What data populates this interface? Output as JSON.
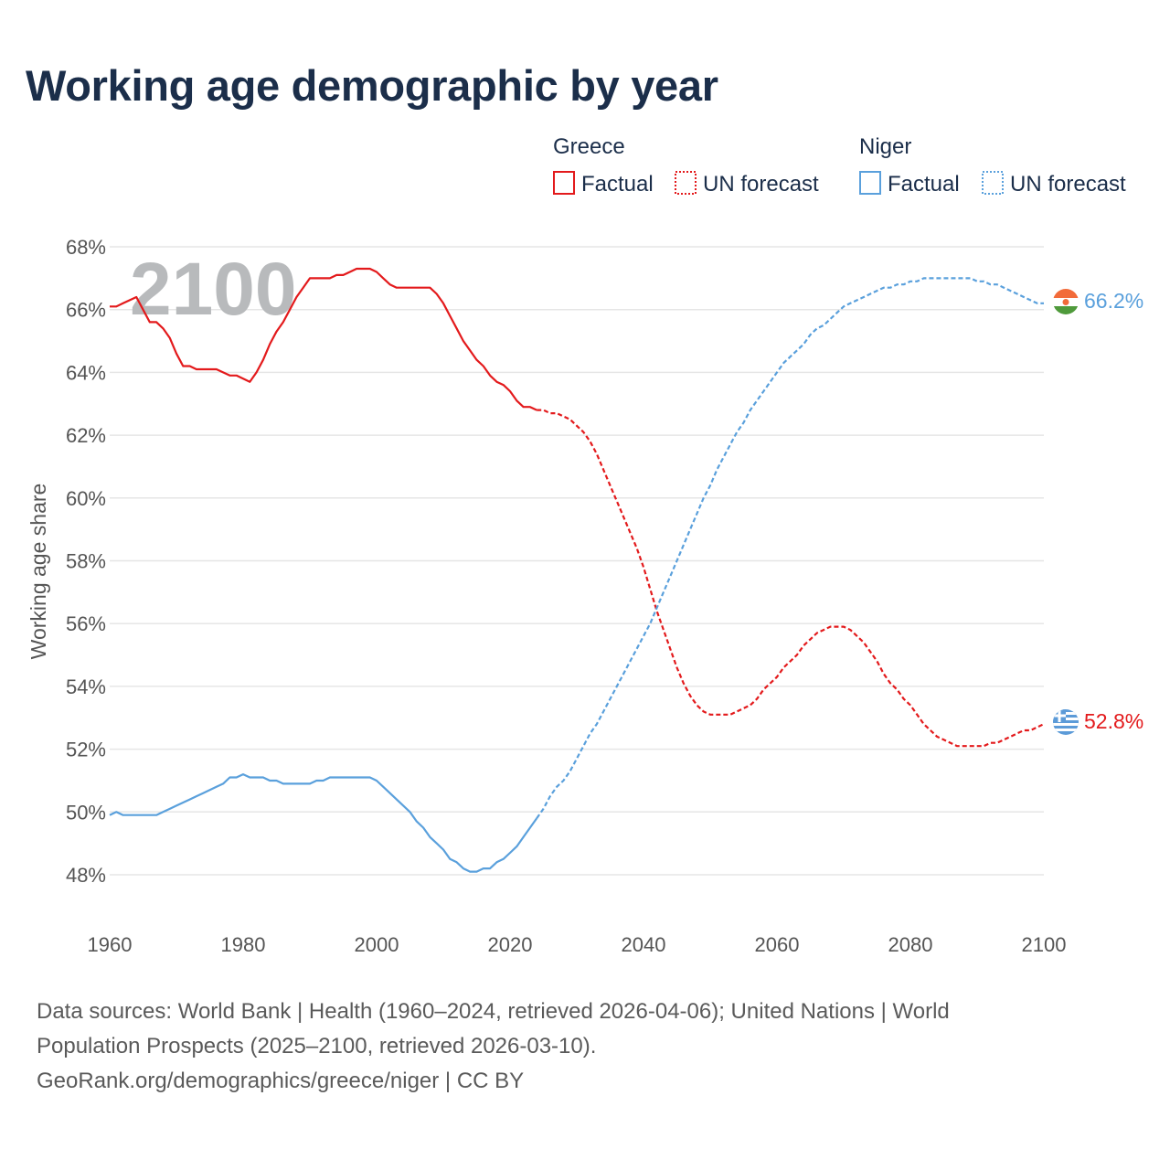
{
  "title": "Working age demographic by year",
  "legend": {
    "groups": [
      {
        "name": "Greece",
        "color": "#e31a1c",
        "items": [
          "Factual",
          "UN forecast"
        ]
      },
      {
        "name": "Niger",
        "color": "#5aa0dc",
        "items": [
          "Factual",
          "UN forecast"
        ]
      }
    ]
  },
  "footer": {
    "line1": "Data sources: World Bank | Health (1960–2024, retrieved 2026-04-06); United Nations | World",
    "line2": "Population Prospects (2025–2100, retrieved 2026-03-10).",
    "line3": "GeoRank.org/demographics/greece/niger | CC BY"
  },
  "chart_data": {
    "type": "line",
    "title": "Working age demographic by year",
    "xlabel": "",
    "ylabel": "Working age share",
    "xlim": [
      1960,
      2100
    ],
    "ylim": [
      47,
      68
    ],
    "x_ticks": [
      1960,
      1980,
      2000,
      2020,
      2040,
      2060,
      2080,
      2100
    ],
    "y_ticks": [
      48,
      50,
      52,
      54,
      56,
      58,
      60,
      62,
      64,
      66,
      68
    ],
    "y_tick_labels": [
      "48%",
      "50%",
      "52%",
      "54%",
      "56%",
      "58%",
      "60%",
      "62%",
      "64%",
      "66%",
      "68%"
    ],
    "x_tick_labels": [
      "1960",
      "1980",
      "2000",
      "2020",
      "2040",
      "2060",
      "2080",
      "2100"
    ],
    "current_year_label": "2100",
    "forecast_start": 2024,
    "series": [
      {
        "name": "Greece",
        "color": "#e31a1c",
        "end_label": "52.8%",
        "flag": "greece-flag",
        "points": [
          [
            1960,
            66.1
          ],
          [
            1961,
            66.1
          ],
          [
            1962,
            66.2
          ],
          [
            1963,
            66.3
          ],
          [
            1964,
            66.4
          ],
          [
            1965,
            66.0
          ],
          [
            1966,
            65.6
          ],
          [
            1967,
            65.6
          ],
          [
            1968,
            65.4
          ],
          [
            1969,
            65.1
          ],
          [
            1970,
            64.6
          ],
          [
            1971,
            64.2
          ],
          [
            1972,
            64.2
          ],
          [
            1973,
            64.1
          ],
          [
            1974,
            64.1
          ],
          [
            1975,
            64.1
          ],
          [
            1976,
            64.1
          ],
          [
            1977,
            64.0
          ],
          [
            1978,
            63.9
          ],
          [
            1979,
            63.9
          ],
          [
            1980,
            63.8
          ],
          [
            1981,
            63.7
          ],
          [
            1982,
            64.0
          ],
          [
            1983,
            64.4
          ],
          [
            1984,
            64.9
          ],
          [
            1985,
            65.3
          ],
          [
            1986,
            65.6
          ],
          [
            1987,
            66.0
          ],
          [
            1988,
            66.4
          ],
          [
            1989,
            66.7
          ],
          [
            1990,
            67.0
          ],
          [
            1991,
            67.0
          ],
          [
            1992,
            67.0
          ],
          [
            1993,
            67.0
          ],
          [
            1994,
            67.1
          ],
          [
            1995,
            67.1
          ],
          [
            1996,
            67.2
          ],
          [
            1997,
            67.3
          ],
          [
            1998,
            67.3
          ],
          [
            1999,
            67.3
          ],
          [
            2000,
            67.2
          ],
          [
            2001,
            67.0
          ],
          [
            2002,
            66.8
          ],
          [
            2003,
            66.7
          ],
          [
            2004,
            66.7
          ],
          [
            2005,
            66.7
          ],
          [
            2006,
            66.7
          ],
          [
            2007,
            66.7
          ],
          [
            2008,
            66.7
          ],
          [
            2009,
            66.5
          ],
          [
            2010,
            66.2
          ],
          [
            2011,
            65.8
          ],
          [
            2012,
            65.4
          ],
          [
            2013,
            65.0
          ],
          [
            2014,
            64.7
          ],
          [
            2015,
            64.4
          ],
          [
            2016,
            64.2
          ],
          [
            2017,
            63.9
          ],
          [
            2018,
            63.7
          ],
          [
            2019,
            63.6
          ],
          [
            2020,
            63.4
          ],
          [
            2021,
            63.1
          ],
          [
            2022,
            62.9
          ],
          [
            2023,
            62.9
          ],
          [
            2024,
            62.8
          ],
          [
            2025,
            62.8
          ],
          [
            2026,
            62.7
          ],
          [
            2027,
            62.7
          ],
          [
            2028,
            62.6
          ],
          [
            2029,
            62.5
          ],
          [
            2030,
            62.3
          ],
          [
            2031,
            62.1
          ],
          [
            2032,
            61.8
          ],
          [
            2033,
            61.4
          ],
          [
            2034,
            60.9
          ],
          [
            2035,
            60.4
          ],
          [
            2036,
            59.9
          ],
          [
            2037,
            59.4
          ],
          [
            2038,
            58.9
          ],
          [
            2039,
            58.4
          ],
          [
            2040,
            57.8
          ],
          [
            2041,
            57.1
          ],
          [
            2042,
            56.4
          ],
          [
            2043,
            55.8
          ],
          [
            2044,
            55.2
          ],
          [
            2045,
            54.6
          ],
          [
            2046,
            54.1
          ],
          [
            2047,
            53.7
          ],
          [
            2048,
            53.4
          ],
          [
            2049,
            53.2
          ],
          [
            2050,
            53.1
          ],
          [
            2051,
            53.1
          ],
          [
            2052,
            53.1
          ],
          [
            2053,
            53.1
          ],
          [
            2054,
            53.2
          ],
          [
            2055,
            53.3
          ],
          [
            2056,
            53.4
          ],
          [
            2057,
            53.6
          ],
          [
            2058,
            53.9
          ],
          [
            2059,
            54.1
          ],
          [
            2060,
            54.3
          ],
          [
            2061,
            54.6
          ],
          [
            2062,
            54.8
          ],
          [
            2063,
            55.0
          ],
          [
            2064,
            55.3
          ],
          [
            2065,
            55.5
          ],
          [
            2066,
            55.7
          ],
          [
            2067,
            55.8
          ],
          [
            2068,
            55.9
          ],
          [
            2069,
            55.9
          ],
          [
            2070,
            55.9
          ],
          [
            2071,
            55.8
          ],
          [
            2072,
            55.6
          ],
          [
            2073,
            55.4
          ],
          [
            2074,
            55.1
          ],
          [
            2075,
            54.8
          ],
          [
            2076,
            54.4
          ],
          [
            2077,
            54.1
          ],
          [
            2078,
            53.9
          ],
          [
            2079,
            53.6
          ],
          [
            2080,
            53.4
          ],
          [
            2081,
            53.1
          ],
          [
            2082,
            52.8
          ],
          [
            2083,
            52.6
          ],
          [
            2084,
            52.4
          ],
          [
            2085,
            52.3
          ],
          [
            2086,
            52.2
          ],
          [
            2087,
            52.1
          ],
          [
            2088,
            52.1
          ],
          [
            2089,
            52.1
          ],
          [
            2090,
            52.1
          ],
          [
            2091,
            52.1
          ],
          [
            2092,
            52.2
          ],
          [
            2093,
            52.2
          ],
          [
            2094,
            52.3
          ],
          [
            2095,
            52.4
          ],
          [
            2096,
            52.5
          ],
          [
            2097,
            52.6
          ],
          [
            2098,
            52.6
          ],
          [
            2099,
            52.7
          ],
          [
            2100,
            52.8
          ]
        ]
      },
      {
        "name": "Niger",
        "color": "#5aa0dc",
        "end_label": "66.2%",
        "flag": "niger-flag",
        "points": [
          [
            1960,
            49.9
          ],
          [
            1961,
            50.0
          ],
          [
            1962,
            49.9
          ],
          [
            1963,
            49.9
          ],
          [
            1964,
            49.9
          ],
          [
            1965,
            49.9
          ],
          [
            1966,
            49.9
          ],
          [
            1967,
            49.9
          ],
          [
            1968,
            50.0
          ],
          [
            1969,
            50.1
          ],
          [
            1970,
            50.2
          ],
          [
            1971,
            50.3
          ],
          [
            1972,
            50.4
          ],
          [
            1973,
            50.5
          ],
          [
            1974,
            50.6
          ],
          [
            1975,
            50.7
          ],
          [
            1976,
            50.8
          ],
          [
            1977,
            50.9
          ],
          [
            1978,
            51.1
          ],
          [
            1979,
            51.1
          ],
          [
            1980,
            51.2
          ],
          [
            1981,
            51.1
          ],
          [
            1982,
            51.1
          ],
          [
            1983,
            51.1
          ],
          [
            1984,
            51.0
          ],
          [
            1985,
            51.0
          ],
          [
            1986,
            50.9
          ],
          [
            1987,
            50.9
          ],
          [
            1988,
            50.9
          ],
          [
            1989,
            50.9
          ],
          [
            1990,
            50.9
          ],
          [
            1991,
            51.0
          ],
          [
            1992,
            51.0
          ],
          [
            1993,
            51.1
          ],
          [
            1994,
            51.1
          ],
          [
            1995,
            51.1
          ],
          [
            1996,
            51.1
          ],
          [
            1997,
            51.1
          ],
          [
            1998,
            51.1
          ],
          [
            1999,
            51.1
          ],
          [
            2000,
            51.0
          ],
          [
            2001,
            50.8
          ],
          [
            2002,
            50.6
          ],
          [
            2003,
            50.4
          ],
          [
            2004,
            50.2
          ],
          [
            2005,
            50.0
          ],
          [
            2006,
            49.7
          ],
          [
            2007,
            49.5
          ],
          [
            2008,
            49.2
          ],
          [
            2009,
            49.0
          ],
          [
            2010,
            48.8
          ],
          [
            2011,
            48.5
          ],
          [
            2012,
            48.4
          ],
          [
            2013,
            48.2
          ],
          [
            2014,
            48.1
          ],
          [
            2015,
            48.1
          ],
          [
            2016,
            48.2
          ],
          [
            2017,
            48.2
          ],
          [
            2018,
            48.4
          ],
          [
            2019,
            48.5
          ],
          [
            2020,
            48.7
          ],
          [
            2021,
            48.9
          ],
          [
            2022,
            49.2
          ],
          [
            2023,
            49.5
          ],
          [
            2024,
            49.8
          ],
          [
            2025,
            50.1
          ],
          [
            2026,
            50.5
          ],
          [
            2027,
            50.8
          ],
          [
            2028,
            51.0
          ],
          [
            2029,
            51.3
          ],
          [
            2030,
            51.7
          ],
          [
            2031,
            52.1
          ],
          [
            2032,
            52.5
          ],
          [
            2033,
            52.8
          ],
          [
            2034,
            53.2
          ],
          [
            2035,
            53.6
          ],
          [
            2036,
            54.0
          ],
          [
            2037,
            54.4
          ],
          [
            2038,
            54.8
          ],
          [
            2039,
            55.2
          ],
          [
            2040,
            55.6
          ],
          [
            2041,
            56.0
          ],
          [
            2042,
            56.5
          ],
          [
            2043,
            57.0
          ],
          [
            2044,
            57.5
          ],
          [
            2045,
            58.0
          ],
          [
            2046,
            58.5
          ],
          [
            2047,
            59.0
          ],
          [
            2048,
            59.5
          ],
          [
            2049,
            60.0
          ],
          [
            2050,
            60.4
          ],
          [
            2051,
            60.9
          ],
          [
            2052,
            61.3
          ],
          [
            2053,
            61.7
          ],
          [
            2054,
            62.1
          ],
          [
            2055,
            62.4
          ],
          [
            2056,
            62.8
          ],
          [
            2057,
            63.1
          ],
          [
            2058,
            63.4
          ],
          [
            2059,
            63.7
          ],
          [
            2060,
            64.0
          ],
          [
            2061,
            64.3
          ],
          [
            2062,
            64.5
          ],
          [
            2063,
            64.7
          ],
          [
            2064,
            64.9
          ],
          [
            2065,
            65.2
          ],
          [
            2066,
            65.4
          ],
          [
            2067,
            65.5
          ],
          [
            2068,
            65.7
          ],
          [
            2069,
            65.9
          ],
          [
            2070,
            66.1
          ],
          [
            2071,
            66.2
          ],
          [
            2072,
            66.3
          ],
          [
            2073,
            66.4
          ],
          [
            2074,
            66.5
          ],
          [
            2075,
            66.6
          ],
          [
            2076,
            66.7
          ],
          [
            2077,
            66.7
          ],
          [
            2078,
            66.8
          ],
          [
            2079,
            66.8
          ],
          [
            2080,
            66.9
          ],
          [
            2081,
            66.9
          ],
          [
            2082,
            67.0
          ],
          [
            2083,
            67.0
          ],
          [
            2084,
            67.0
          ],
          [
            2085,
            67.0
          ],
          [
            2086,
            67.0
          ],
          [
            2087,
            67.0
          ],
          [
            2088,
            67.0
          ],
          [
            2089,
            67.0
          ],
          [
            2090,
            66.9
          ],
          [
            2091,
            66.9
          ],
          [
            2092,
            66.8
          ],
          [
            2093,
            66.8
          ],
          [
            2094,
            66.7
          ],
          [
            2095,
            66.6
          ],
          [
            2096,
            66.5
          ],
          [
            2097,
            66.4
          ],
          [
            2098,
            66.3
          ],
          [
            2099,
            66.2
          ],
          [
            2100,
            66.2
          ]
        ]
      }
    ]
  }
}
